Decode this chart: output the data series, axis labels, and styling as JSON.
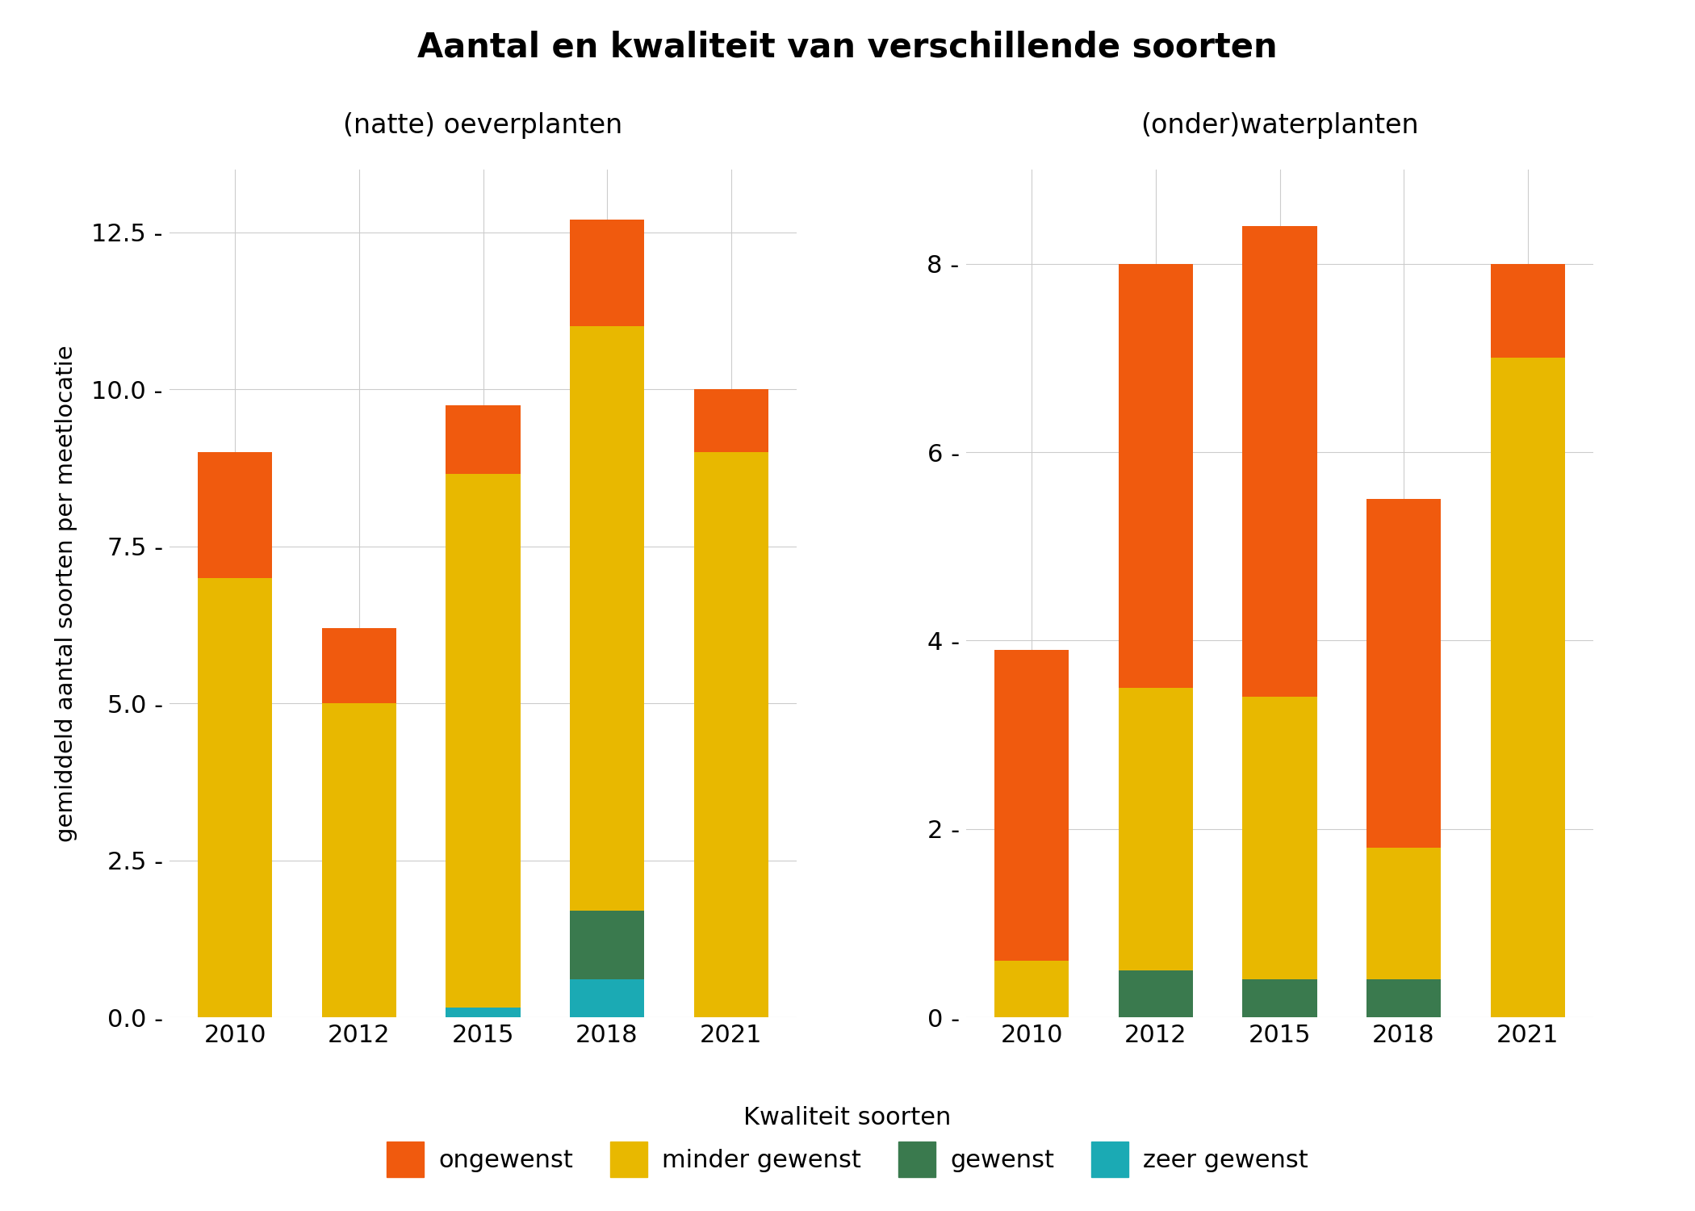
{
  "title": "Aantal en kwaliteit van verschillende soorten",
  "subtitle_left": "(natte) oeverplanten",
  "subtitle_right": "(onder)waterplanten",
  "ylabel": "gemiddeld aantal soorten per meetlocatie",
  "colors": {
    "ongewenst": "#F05A0E",
    "minder_gewenst": "#E8B800",
    "gewenst": "#3A7A4E",
    "zeer_gewenst": "#1BAAB4"
  },
  "legend_labels": [
    "ongewenst",
    "minder gewenst",
    "gewenst",
    "zeer gewenst"
  ],
  "legend_title": "Kwaliteit soorten",
  "left": {
    "years": [
      "2010",
      "2012",
      "2015",
      "2018",
      "2021"
    ],
    "ongewenst": [
      2.0,
      1.2,
      1.1,
      1.7,
      1.0
    ],
    "minder_gewenst": [
      7.0,
      5.0,
      8.5,
      9.3,
      9.0
    ],
    "gewenst": [
      0.0,
      0.0,
      0.0,
      1.1,
      0.0
    ],
    "zeer_gewenst": [
      0.0,
      0.0,
      0.15,
      0.6,
      0.0
    ],
    "ylim": [
      0,
      13.5
    ],
    "yticks": [
      0.0,
      2.5,
      5.0,
      7.5,
      10.0,
      12.5
    ]
  },
  "right": {
    "years": [
      "2010",
      "2012",
      "2015",
      "2018",
      "2021"
    ],
    "ongewenst": [
      3.3,
      4.5,
      5.0,
      3.7,
      1.0
    ],
    "minder_gewenst": [
      0.6,
      3.0,
      3.0,
      1.4,
      7.0
    ],
    "gewenst": [
      0.0,
      0.5,
      0.4,
      0.4,
      0.0
    ],
    "zeer_gewenst": [
      0.0,
      0.0,
      0.0,
      0.0,
      0.0
    ],
    "ylim": [
      0,
      9.0
    ],
    "yticks": [
      0,
      2,
      4,
      6,
      8
    ]
  }
}
